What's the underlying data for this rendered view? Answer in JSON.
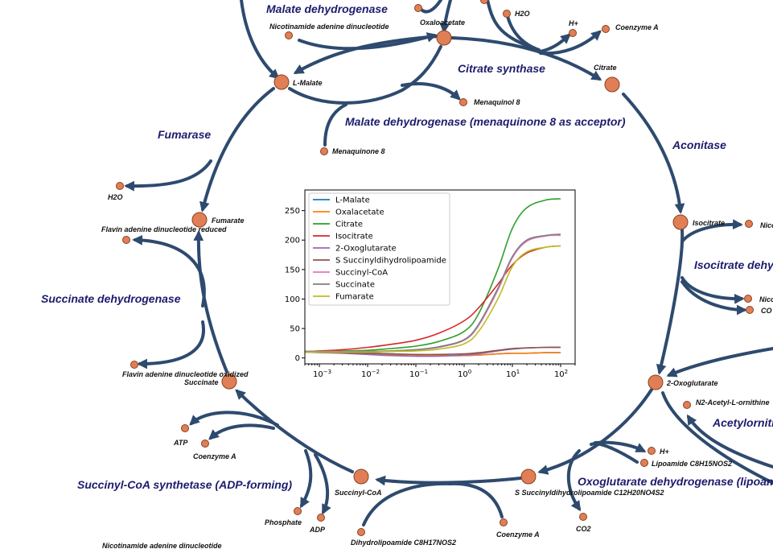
{
  "colors": {
    "edge": "#2e4a6e",
    "node_fill": "#e07f55",
    "node_stroke": "#8a3f20",
    "enzyme_text": "#1c1c6e"
  },
  "metabolites": {
    "malate": "L-Malate",
    "nad_top": "Nicotinamide adenine dinucleotide",
    "oxaloacetate": "Oxaloacetate",
    "h2o_top": "H2O",
    "h_top": "H+",
    "coa_top": "Coenzyme A",
    "citrate": "Citrate",
    "menaquinol": "Menaquinol 8",
    "menaquinone": "Menaquinone 8",
    "h2o_left": "H2O",
    "fumarate": "Fumarate",
    "fadh": "Flavin adenine dinucleotide reduced",
    "fad": "Flavin adenine dinucleotide oxidized",
    "succinate": "Succinate",
    "atp": "ATP",
    "coa_left": "Coenzyme A",
    "phosphate": "Phosphate",
    "adp": "ADP",
    "succinylcoa": "Succinyl-CoA",
    "dihydrolipoamide": "Dihydrolipoamide C8H17NOS2",
    "coa_bottom": "Coenzyme A",
    "ssucc": "S Succinyldihydrolipoamide C12H20NO4S2",
    "co2_bottom": "CO2",
    "h_right": "H+",
    "lipoamide": "Lipoamide C8H15NOS2",
    "oxoglutarate": "2-Oxoglutarate",
    "n2acetyl": "N2-Acetyl-L-ornithine",
    "isocitrate": "Isocitrate",
    "nic_r1": "Nico",
    "nic_r2": "Nico",
    "co2_right": "CO",
    "nad_bottom": "Nicotinamide adenine dinucleotide"
  },
  "enzymes": {
    "malate_dh": "Malate dehydrogenase",
    "citrate_synthase": "Citrate synthase",
    "malate_dh_mq": "Malate dehydrogenase (menaquinone 8 as acceptor)",
    "aconitase": "Aconitase",
    "fumarase": "Fumarase",
    "succinate_dh": "Succinate dehydrogenase",
    "isocitrate_dh": "Isocitrate dehy",
    "acetylornithine": "Acetylornith",
    "oxoglutarate_dh": "Oxoglutarate dehydrogenase (lipoam",
    "succinyl_coa_synthetase": "Succinyl-CoA synthetase (ADP-forming)"
  },
  "chart_data": {
    "type": "line",
    "xscale": "log",
    "xlim": [
      0.0005,
      200
    ],
    "ylim": [
      -10,
      285
    ],
    "x_ticks": [
      {
        "value": 0.001,
        "base": "10",
        "exp": "−3"
      },
      {
        "value": 0.01,
        "base": "10",
        "exp": "−2"
      },
      {
        "value": 0.1,
        "base": "10",
        "exp": "−1"
      },
      {
        "value": 1,
        "base": "10",
        "exp": "0"
      },
      {
        "value": 10,
        "base": "10",
        "exp": "1"
      },
      {
        "value": 100,
        "base": "10",
        "exp": "2"
      }
    ],
    "y_ticks": [
      0,
      50,
      100,
      150,
      200,
      250
    ],
    "y_tick_labels": [
      "0",
      "50",
      "100",
      "150",
      "200",
      "250"
    ],
    "legend_position": "top-left",
    "x": [
      0.0005,
      0.001,
      0.003,
      0.01,
      0.03,
      0.1,
      0.3,
      1,
      2,
      5,
      10,
      20,
      50,
      100
    ],
    "series": [
      {
        "name": "L-Malate",
        "color": "#1f77b4",
        "values": [
          10,
          10,
          9,
          8,
          7,
          5,
          4,
          4,
          5,
          7,
          8,
          8,
          9,
          9
        ]
      },
      {
        "name": "Oxalacetate",
        "color": "#ff7f0e",
        "values": [
          10,
          10,
          9,
          8,
          6,
          5,
          4,
          4,
          5,
          7,
          8,
          8,
          9,
          9
        ]
      },
      {
        "name": "Citrate",
        "color": "#2ca02c",
        "values": [
          11,
          11,
          12,
          13,
          16,
          20,
          28,
          45,
          75,
          150,
          220,
          255,
          268,
          270
        ]
      },
      {
        "name": "Isocitrate",
        "color": "#d62728",
        "values": [
          11,
          12,
          14,
          18,
          23,
          30,
          42,
          63,
          85,
          125,
          158,
          178,
          188,
          190
        ]
      },
      {
        "name": "2-Oxoglutarate",
        "color": "#9467bd",
        "values": [
          10,
          9,
          8,
          6,
          4,
          3,
          3,
          5,
          7,
          12,
          15,
          17,
          18,
          18
        ]
      },
      {
        "name": "S Succinyldihydrolipoamide",
        "color": "#8c564b",
        "values": [
          10,
          10,
          9,
          8,
          7,
          6,
          6,
          7,
          9,
          13,
          16,
          17,
          18,
          18
        ]
      },
      {
        "name": "Succinyl-CoA",
        "color": "#e377c2",
        "values": [
          11,
          11,
          11,
          11,
          12,
          14,
          18,
          30,
          55,
          115,
          170,
          198,
          207,
          208
        ]
      },
      {
        "name": "Succinate",
        "color": "#7f7f7f",
        "values": [
          11,
          11,
          11,
          11,
          12,
          14,
          19,
          31,
          57,
          118,
          172,
          200,
          208,
          210
        ]
      },
      {
        "name": "Fumarate",
        "color": "#bcbd22",
        "values": [
          10,
          10,
          10,
          10,
          11,
          12,
          15,
          24,
          45,
          100,
          155,
          180,
          188,
          190
        ]
      }
    ]
  }
}
